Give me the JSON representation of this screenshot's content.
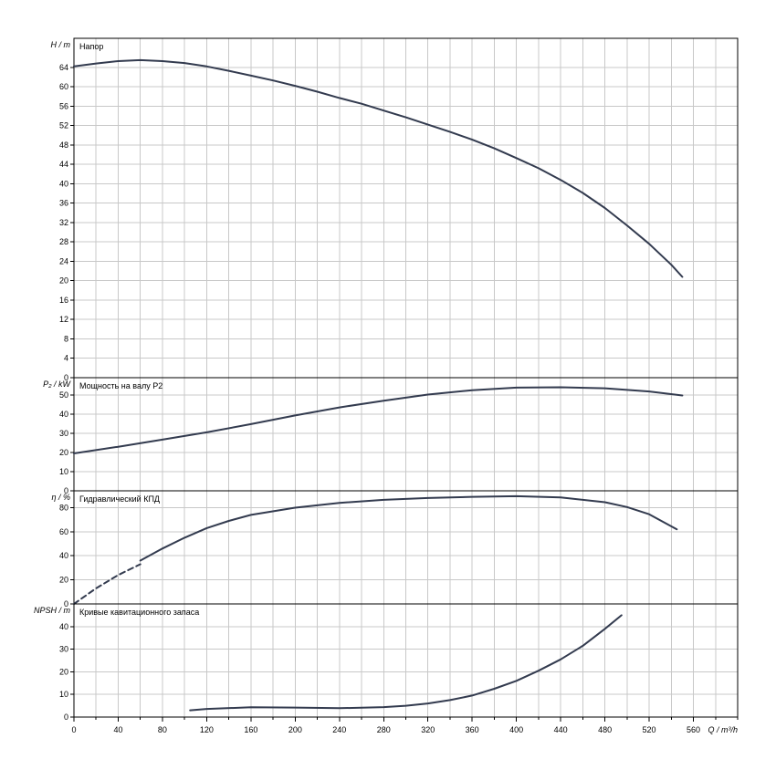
{
  "chart_data": {
    "type": "line",
    "x_axis": {
      "label": "Q / m³/h",
      "range": [
        0,
        600
      ],
      "ticks": [
        0,
        40,
        80,
        120,
        160,
        200,
        240,
        280,
        320,
        360,
        400,
        440,
        480,
        520,
        560
      ]
    },
    "colors": {
      "curve": "#333b4f",
      "grid": "#c8c8c8",
      "frame": "#000000"
    },
    "panels": [
      {
        "id": "head",
        "ylabel": "H / m",
        "title": "Напор",
        "ylim": [
          0,
          70
        ],
        "yticks": [
          0,
          4,
          8,
          12,
          16,
          20,
          24,
          28,
          32,
          36,
          40,
          44,
          48,
          52,
          56,
          60,
          64
        ],
        "series": [
          {
            "x": [
              0,
              20,
              40,
              60,
              80,
              100,
              120,
              140,
              160,
              180,
              200,
              220,
              240,
              260,
              280,
              300,
              320,
              340,
              360,
              380,
              400,
              420,
              440,
              460,
              480,
              500,
              520,
              540,
              550
            ],
            "y": [
              64.2,
              64.8,
              65.3,
              65.5,
              65.3,
              64.9,
              64.2,
              63.3,
              62.3,
              61.3,
              60.2,
              59.0,
              57.7,
              56.5,
              55.1,
              53.7,
              52.2,
              50.7,
              49.1,
              47.3,
              45.3,
              43.2,
              40.8,
              38.1,
              35.0,
              31.4,
              27.6,
              23.3,
              20.8
            ]
          }
        ]
      },
      {
        "id": "power",
        "ylabel": "P₂ / kW",
        "title": "Мощность на валу P2",
        "ylim": [
          0,
          59
        ],
        "yticks": [
          0,
          10,
          20,
          30,
          40,
          50
        ],
        "series": [
          {
            "x": [
              0,
              40,
              80,
              120,
              160,
              200,
              240,
              280,
              320,
              360,
              400,
              440,
              480,
              520,
              550
            ],
            "y": [
              19.5,
              23.0,
              26.7,
              30.5,
              34.8,
              39.3,
              43.5,
              47.0,
              50.2,
              52.5,
              53.8,
              54.0,
              53.5,
              51.8,
              49.7
            ]
          }
        ]
      },
      {
        "id": "efficiency",
        "ylabel": "η / %",
        "title": "Гидравлический КПД",
        "ylim": [
          0,
          94
        ],
        "yticks": [
          0,
          20,
          40,
          60,
          80
        ],
        "dashed_series": [
          {
            "x": [
              0,
              20,
              40,
              60
            ],
            "y": [
              0,
              13,
              24,
              33
            ]
          }
        ],
        "series": [
          {
            "x": [
              60,
              80,
              100,
              120,
              140,
              160,
              200,
              240,
              280,
              320,
              360,
              400,
              440,
              480,
              500,
              520,
              545
            ],
            "y": [
              36,
              46,
              55,
              63,
              69,
              74,
              80,
              84,
              86.5,
              88,
              89,
              89.5,
              88.5,
              84.5,
              80.5,
              74.5,
              62
            ]
          }
        ]
      },
      {
        "id": "npsh",
        "ylabel": "NPSH / m",
        "title": "Кривые кавитационного запаса",
        "ylim": [
          0,
          50
        ],
        "yticks": [
          0,
          10,
          20,
          30,
          40
        ],
        "series": [
          {
            "x": [
              105,
              120,
              160,
              200,
              240,
              280,
              300,
              320,
              340,
              360,
              380,
              400,
              420,
              440,
              460,
              480,
              495
            ],
            "y": [
              3.0,
              3.6,
              4.3,
              4.2,
              3.9,
              4.4,
              5.0,
              6.0,
              7.5,
              9.5,
              12.5,
              16.0,
              20.5,
              25.5,
              31.5,
              39.0,
              45.0
            ]
          }
        ]
      }
    ]
  }
}
